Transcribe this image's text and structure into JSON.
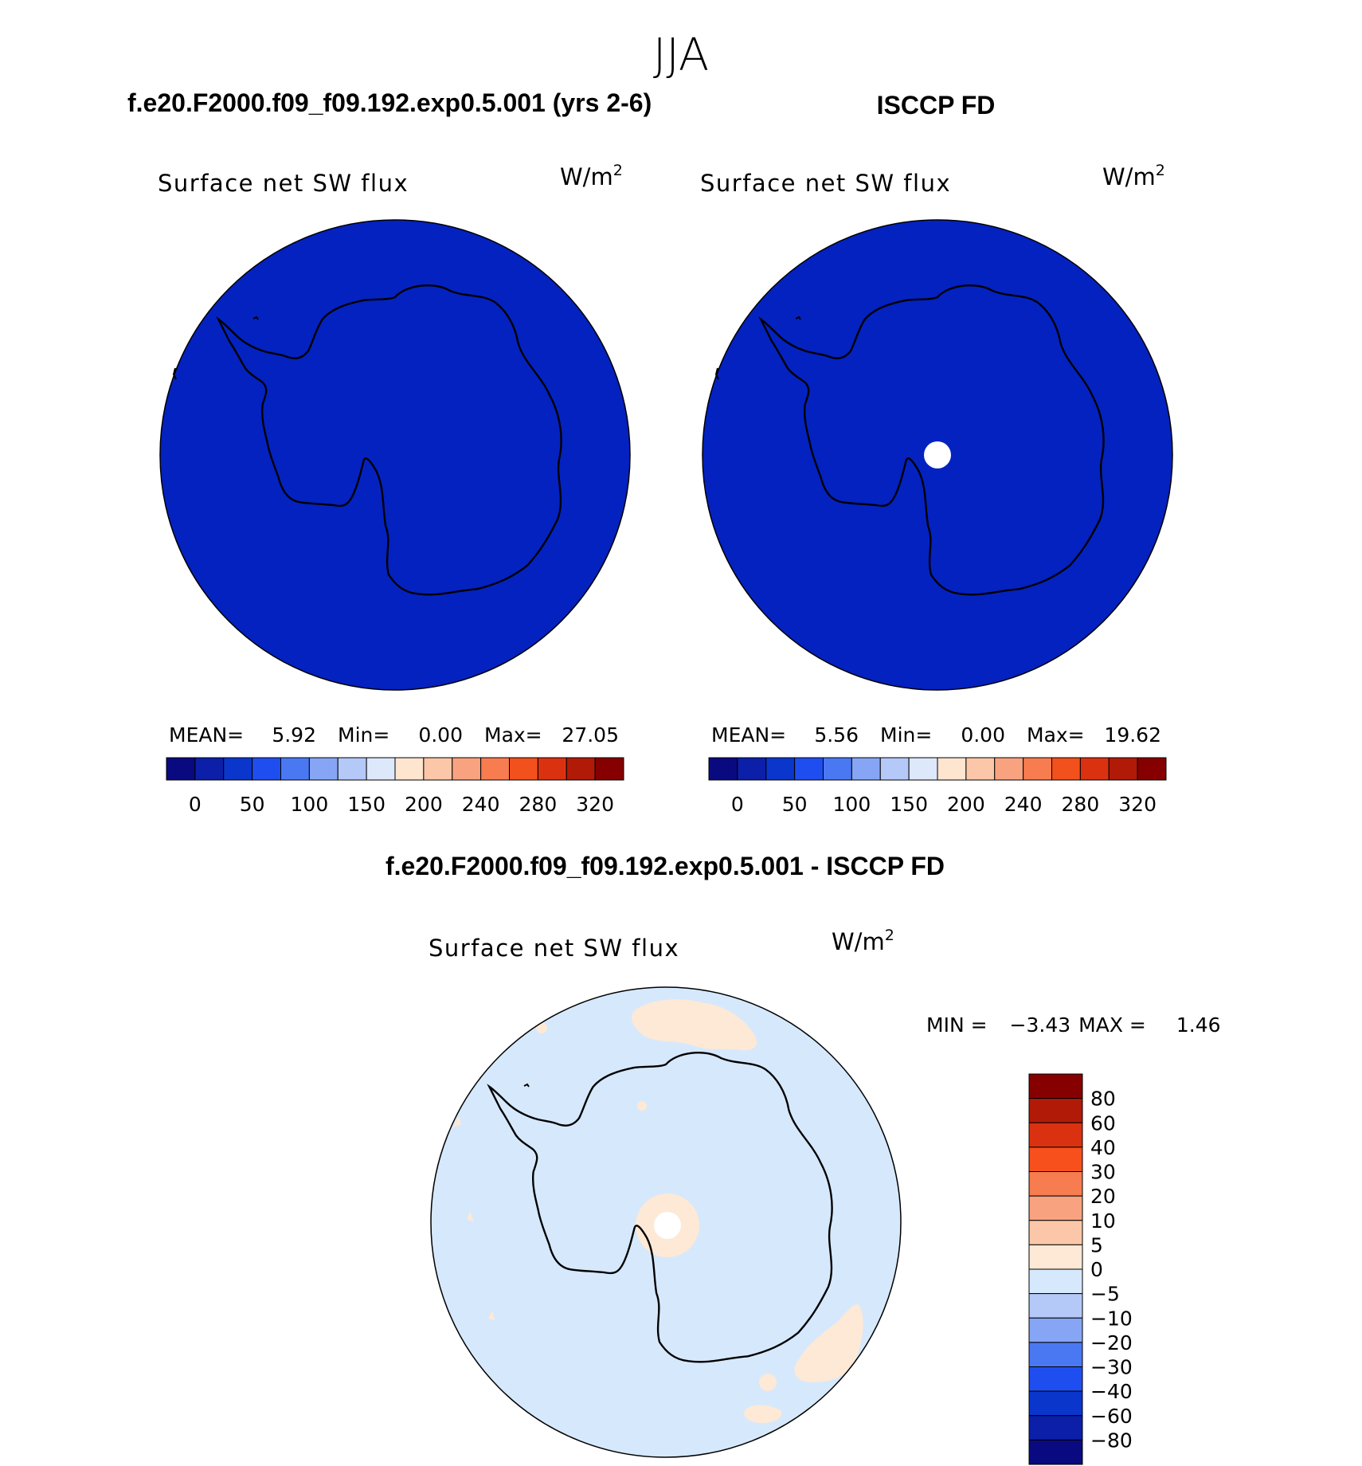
{
  "figure": {
    "season": "JJA",
    "case_title": "f.e20.F2000.f09_f09.192.exp0.5.001 (yrs 2-6)",
    "obs_title": "ISCCP FD",
    "diff_title": "f.e20.F2000.f09_f09.192.exp0.5.001 - ISCCP FD"
  },
  "chart_data": [
    {
      "type": "heatmap",
      "panel": "model",
      "projection": "south-polar-stereographic",
      "variable": "Surface net SW flux",
      "units": "W/m²",
      "stats": {
        "mean_label": "MEAN=",
        "mean": "5.92",
        "min_label": "Min=",
        "min": "0.00",
        "max_label": "Max=",
        "max": "27.05"
      },
      "colorbar": {
        "orientation": "horizontal",
        "tick_labels": [
          "0",
          "50",
          "100",
          "150",
          "200",
          "240",
          "280",
          "320"
        ],
        "colors": [
          "#0a0a80",
          "#0b1fa8",
          "#0a36cc",
          "#1f4ef0",
          "#4a78f2",
          "#86a6f5",
          "#b5c9f8",
          "#dde8fb",
          "#fde5cf",
          "#fbc7a8",
          "#f9a27f",
          "#f77c50",
          "#f2501c",
          "#da3211",
          "#b21a08",
          "#860000"
        ]
      },
      "field_description": "uniform low values (0-50 bin) over entire southern polar cap; Antarctic coastline outlined",
      "dominant_color": "#0422bf"
    },
    {
      "type": "heatmap",
      "panel": "observations",
      "projection": "south-polar-stereographic",
      "variable": "Surface net SW flux",
      "units": "W/m²",
      "stats": {
        "mean_label": "MEAN=",
        "mean": "5.56",
        "min_label": "Min=",
        "min": "0.00",
        "max_label": "Max=",
        "max": "19.62"
      },
      "colorbar": {
        "orientation": "horizontal",
        "tick_labels": [
          "0",
          "50",
          "100",
          "150",
          "200",
          "240",
          "280",
          "320"
        ],
        "colors": [
          "#0a0a80",
          "#0b1fa8",
          "#0a36cc",
          "#1f4ef0",
          "#4a78f2",
          "#86a6f5",
          "#b5c9f8",
          "#dde8fb",
          "#fde5cf",
          "#fbc7a8",
          "#f9a27f",
          "#f77c50",
          "#f2501c",
          "#da3211",
          "#b21a08",
          "#860000"
        ]
      },
      "field_description": "uniform low values (0-50 bin); missing data hole at South Pole",
      "dominant_color": "#0422bf"
    },
    {
      "type": "heatmap",
      "panel": "difference",
      "projection": "south-polar-stereographic",
      "variable": "Surface net SW flux",
      "units": "W/m²",
      "stats": {
        "min_label": "MIN =",
        "min": "−3.43",
        "max_label": "MAX =",
        "max": "1.46"
      },
      "colorbar": {
        "orientation": "vertical",
        "tick_labels": [
          "80",
          "60",
          "40",
          "30",
          "20",
          "10",
          "5",
          "0",
          "−5",
          "−10",
          "−20",
          "−30",
          "−40",
          "−60",
          "−80"
        ],
        "colors": [
          "#860000",
          "#b21a08",
          "#da3211",
          "#f7501c",
          "#f77c50",
          "#f9a27f",
          "#fbc7a8",
          "#fde9d6",
          "#d6e8fc",
          "#b5c9f8",
          "#86a6f5",
          "#4a78f2",
          "#1f4ef0",
          "#0a36cc",
          "#0b1fa8",
          "#0a0a80"
        ]
      },
      "field_description": "mostly -5 to 0 over the cap; small 0 to 5 patches over ocean and a ring around the pole",
      "dominant_color": "#d6e8fc",
      "positive_color": "#fde9d6"
    }
  ]
}
